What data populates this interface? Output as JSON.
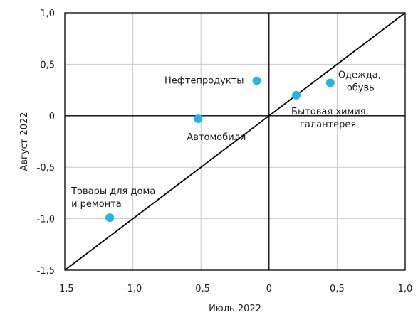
{
  "chart_data": {
    "type": "scatter",
    "title": "",
    "xlabel": "Июль 2022",
    "ylabel": "Август 2022",
    "xlim": [
      -1.5,
      1.0
    ],
    "ylim": [
      -1.5,
      1.0
    ],
    "xticks": [
      -1.5,
      -1.0,
      -0.5,
      0,
      0.5,
      1.0
    ],
    "yticks": [
      -1.5,
      -1.0,
      -0.5,
      0,
      0.5,
      1.0
    ],
    "xtick_labels": [
      "-1,5",
      "-1,0",
      "-0,5",
      "0",
      "0,5",
      "1,0"
    ],
    "ytick_labels": [
      "-1,5",
      "-1,0",
      "-0,5",
      "0",
      "0,5",
      "1,0"
    ],
    "grid": true,
    "diagonal_line": true,
    "point_color": "#1fb5e6",
    "points": [
      {
        "label_lines": [
          "Нефтепродукты"
        ],
        "x": -0.09,
        "y": 0.34
      },
      {
        "label_lines": [
          "Одежда,",
          "обувь"
        ],
        "x": 0.45,
        "y": 0.32
      },
      {
        "label_lines": [
          "Бытовая химия,",
          "галантерея"
        ],
        "x": 0.2,
        "y": 0.2
      },
      {
        "label_lines": [
          "Автомобили"
        ],
        "x": -0.52,
        "y": -0.03
      },
      {
        "label_lines": [
          "Товары для дома",
          "и ремонта"
        ],
        "x": -1.17,
        "y": -0.99
      }
    ]
  }
}
